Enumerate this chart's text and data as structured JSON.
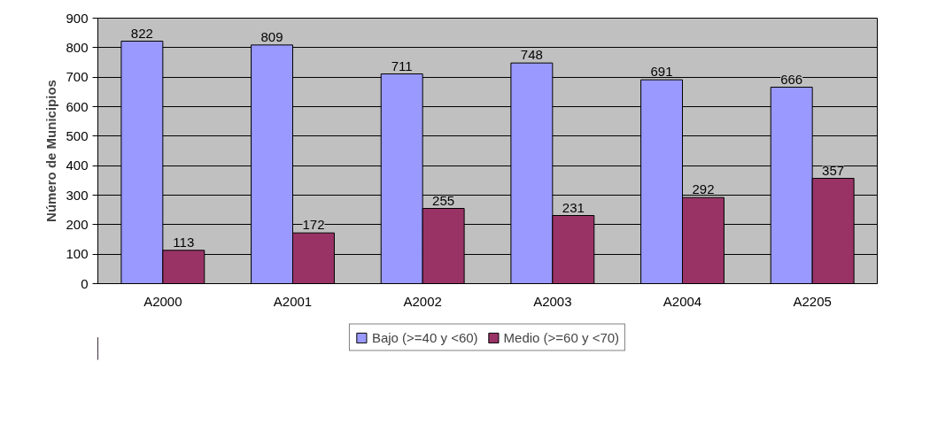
{
  "chart_data": {
    "type": "bar",
    "ylabel": "Número de Municipios",
    "categories": [
      "A2000",
      "A2001",
      "A2002",
      "A2003",
      "A2004",
      "A2205"
    ],
    "series": [
      {
        "name": "Bajo (>=40 y <60)",
        "color": "#9999ff",
        "values": [
          822,
          809,
          711,
          748,
          691,
          666
        ]
      },
      {
        "name": "Medio (>=60 y <70)",
        "color": "#993366",
        "values": [
          113,
          172,
          255,
          231,
          292,
          357
        ]
      }
    ],
    "ylim": [
      0,
      900
    ],
    "yticks": [
      0,
      100,
      200,
      300,
      400,
      500,
      600,
      700,
      800,
      900
    ],
    "grid": "y",
    "legend": "bottom",
    "data_labels": true
  }
}
